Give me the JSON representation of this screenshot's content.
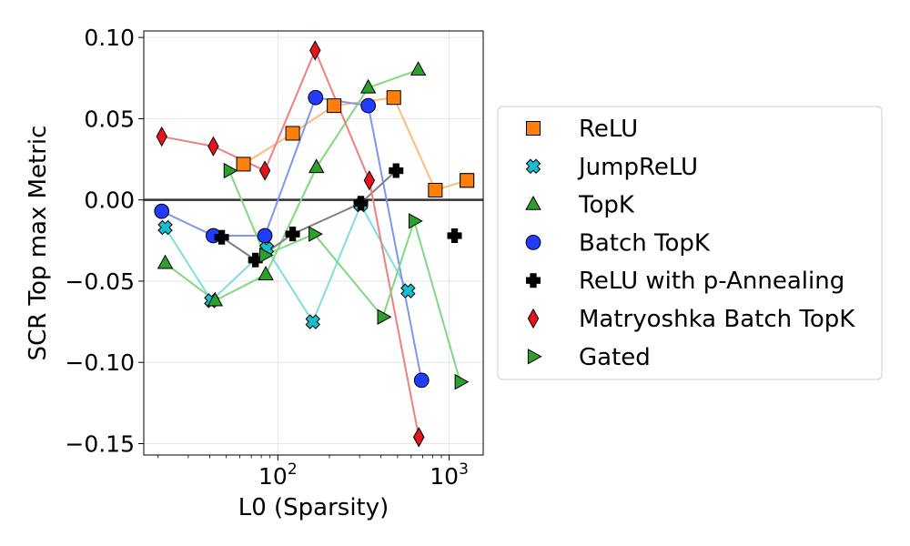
{
  "chart_data": {
    "type": "scatter",
    "title": "",
    "xlabel": "L0 (Sparsity)",
    "ylabel": "SCR Top max Metric",
    "xscale": "log",
    "xlim": [
      16.5,
      1580
    ],
    "ylim": [
      -0.157,
      0.104
    ],
    "yticks": [
      {
        "value": 0.1,
        "label": "0.10"
      },
      {
        "value": 0.05,
        "label": "0.05"
      },
      {
        "value": 0.0,
        "label": "0.00"
      },
      {
        "value": -0.05,
        "label": "−0.05"
      },
      {
        "value": -0.1,
        "label": "−0.10"
      },
      {
        "value": -0.15,
        "label": "−0.15"
      }
    ],
    "xticks": [
      {
        "value": 100,
        "base": "10",
        "exp": "2"
      },
      {
        "value": 1000,
        "base": "10",
        "exp": "3"
      }
    ],
    "reference_line_y": 0,
    "grid": true,
    "legend_position": "right",
    "series": [
      {
        "name": "ReLU",
        "marker": "square",
        "color": "#ff7f0e",
        "line_color": "#ffbb78",
        "segments": [
          [
            0,
            1,
            2,
            3,
            4,
            5,
            6
          ]
        ],
        "points": [
          {
            "x": 63,
            "y": 0.022
          },
          {
            "x": 122,
            "y": 0.041
          },
          {
            "x": 213,
            "y": 0.058
          },
          {
            "x": 475,
            "y": 0.063
          },
          {
            "x": 830,
            "y": 0.006
          },
          {
            "x": 1270,
            "y": 0.012
          },
          {
            "x": 1270,
            "y": 0.012
          }
        ]
      },
      {
        "name": "JumpReLU",
        "marker": "x",
        "color": "#17becf",
        "line_color": "#7fdedf",
        "segments": [
          [
            0,
            1,
            2,
            3,
            4,
            5
          ]
        ],
        "points": [
          {
            "x": 22,
            "y": -0.017
          },
          {
            "x": 41,
            "y": -0.062
          },
          {
            "x": 86,
            "y": -0.03
          },
          {
            "x": 160,
            "y": -0.075
          },
          {
            "x": 305,
            "y": -0.003
          },
          {
            "x": 575,
            "y": -0.056
          }
        ]
      },
      {
        "name": "TopK",
        "marker": "triangle-up",
        "color": "#2ca02c",
        "line_color": "#7fd97f",
        "segments": [
          [
            0,
            1,
            2,
            3,
            4,
            5
          ]
        ],
        "points": [
          {
            "x": 22,
            "y": -0.039
          },
          {
            "x": 43,
            "y": -0.062
          },
          {
            "x": 85,
            "y": -0.046
          },
          {
            "x": 168,
            "y": 0.02
          },
          {
            "x": 337,
            "y": 0.069
          },
          {
            "x": 660,
            "y": 0.08
          }
        ]
      },
      {
        "name": "Batch TopK",
        "marker": "circle",
        "color": "#1f3cff",
        "line_color": "#7f95f0",
        "segments": [
          [
            0,
            1,
            2,
            3,
            4,
            5
          ]
        ],
        "points": [
          {
            "x": 21,
            "y": -0.007
          },
          {
            "x": 42,
            "y": -0.022
          },
          {
            "x": 84,
            "y": -0.022
          },
          {
            "x": 166,
            "y": 0.063
          },
          {
            "x": 337,
            "y": 0.058
          },
          {
            "x": 690,
            "y": -0.111
          }
        ]
      },
      {
        "name": "ReLU with p-Annealing",
        "marker": "plus",
        "color": "#000000",
        "line_color": "#808080",
        "segments": [
          [
            0,
            1,
            2,
            3,
            4
          ]
        ],
        "points": [
          {
            "x": 47,
            "y": -0.023
          },
          {
            "x": 74,
            "y": -0.037
          },
          {
            "x": 122,
            "y": -0.021
          },
          {
            "x": 305,
            "y": -0.002
          },
          {
            "x": 490,
            "y": 0.018
          },
          {
            "x": 1075,
            "y": -0.022
          }
        ]
      },
      {
        "name": "Matryoshka Batch TopK",
        "marker": "diamond",
        "color": "#e8141c",
        "line_color": "#f07f7f",
        "segments": [
          [
            0,
            1,
            2,
            3,
            4,
            5,
            6
          ]
        ],
        "points": [
          {
            "x": 21,
            "y": 0.039
          },
          {
            "x": 42,
            "y": 0.033
          },
          {
            "x": 84,
            "y": 0.018
          },
          {
            "x": 165,
            "y": 0.092
          },
          {
            "x": 342,
            "y": 0.012
          },
          {
            "x": 665,
            "y": -0.146
          },
          {
            "x": 665,
            "y": -0.146
          }
        ]
      },
      {
        "name": "Gated",
        "marker": "triangle-right",
        "color": "#2ca02c",
        "line_color": "#7fd97f",
        "segments": [
          [
            0,
            1,
            2,
            3,
            4,
            5
          ]
        ],
        "points": [
          {
            "x": 52,
            "y": 0.018
          },
          {
            "x": 84,
            "y": -0.034
          },
          {
            "x": 163,
            "y": -0.021
          },
          {
            "x": 410,
            "y": -0.072
          },
          {
            "x": 625,
            "y": -0.013
          },
          {
            "x": 1160,
            "y": -0.112
          }
        ]
      }
    ]
  }
}
